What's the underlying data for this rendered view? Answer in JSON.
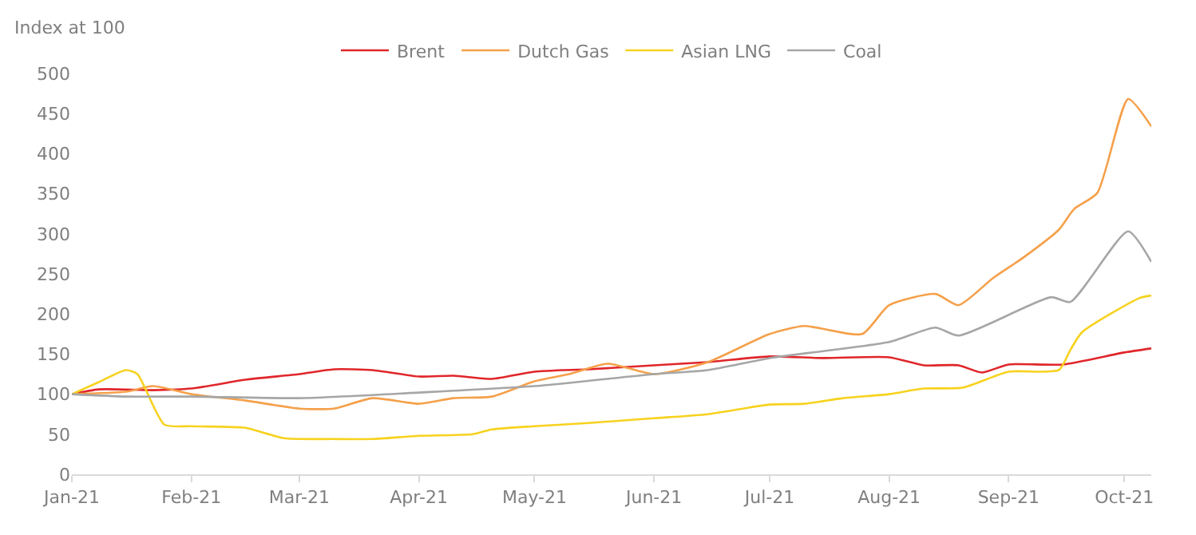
{
  "chart_data": {
    "type": "line",
    "ylabel": "Index at 100",
    "xlim": [
      "2021-01-01",
      "2021-10-08"
    ],
    "xticks": [
      {
        "value": "2021-01-01",
        "label": "Jan-21"
      },
      {
        "value": "2021-02-01",
        "label": "Feb-21"
      },
      {
        "value": "2021-03-01",
        "label": "Mar-21"
      },
      {
        "value": "2021-04-01",
        "label": "Apr-21"
      },
      {
        "value": "2021-05-01",
        "label": "May-21"
      },
      {
        "value": "2021-06-01",
        "label": "Jun-21"
      },
      {
        "value": "2021-07-01",
        "label": "Jul-21"
      },
      {
        "value": "2021-08-01",
        "label": "Aug-21"
      },
      {
        "value": "2021-09-01",
        "label": "Sep-21"
      },
      {
        "value": "2021-10-01",
        "label": "Oct-21"
      }
    ],
    "ylim": [
      0,
      500
    ],
    "yticks": [
      0,
      50,
      100,
      150,
      200,
      250,
      300,
      350,
      400,
      450,
      500
    ],
    "grid": false,
    "legend": "top",
    "marker": "none",
    "line_style": "solid",
    "series": [
      {
        "name": "Brent",
        "color": "#e0262a",
        "x": [
          "2021-01-01",
          "2021-01-08",
          "2021-01-22",
          "2021-02-01",
          "2021-02-15",
          "2021-03-01",
          "2021-03-10",
          "2021-03-20",
          "2021-04-01",
          "2021-04-10",
          "2021-04-20",
          "2021-05-01",
          "2021-05-15",
          "2021-06-01",
          "2021-06-15",
          "2021-07-01",
          "2021-07-15",
          "2021-08-01",
          "2021-08-10",
          "2021-08-19",
          "2021-08-25",
          "2021-09-01",
          "2021-09-15",
          "2021-10-01",
          "2021-10-08"
        ],
        "values": [
          100,
          106,
          105,
          107,
          118,
          125,
          131,
          130,
          122,
          123,
          119,
          128,
          131,
          136,
          140,
          147,
          145,
          146,
          136,
          136,
          127,
          137,
          137,
          152,
          157
        ]
      },
      {
        "name": "Dutch Gas",
        "color": "#f5a04a",
        "x": [
          "2021-01-01",
          "2021-01-15",
          "2021-01-22",
          "2021-02-01",
          "2021-02-15",
          "2021-03-01",
          "2021-03-10",
          "2021-03-20",
          "2021-04-01",
          "2021-04-10",
          "2021-04-20",
          "2021-05-01",
          "2021-05-10",
          "2021-05-20",
          "2021-06-01",
          "2021-06-15",
          "2021-07-01",
          "2021-07-10",
          "2021-07-25",
          "2021-08-01",
          "2021-08-13",
          "2021-08-19",
          "2021-08-28",
          "2021-09-05",
          "2021-09-14",
          "2021-09-18",
          "2021-09-24",
          "2021-10-02",
          "2021-10-08"
        ],
        "values": [
          100,
          103,
          110,
          100,
          92,
          82,
          82,
          95,
          88,
          95,
          97,
          116,
          125,
          138,
          125,
          140,
          175,
          185,
          175,
          211,
          225,
          211,
          245,
          271,
          305,
          331,
          351,
          468,
          434
        ]
      },
      {
        "name": "Asian LNG",
        "color": "#f7d21e",
        "x": [
          "2021-01-01",
          "2021-01-08",
          "2021-01-15",
          "2021-01-18",
          "2021-01-25",
          "2021-02-01",
          "2021-02-15",
          "2021-02-25",
          "2021-03-10",
          "2021-03-20",
          "2021-04-01",
          "2021-04-15",
          "2021-04-20",
          "2021-05-01",
          "2021-05-15",
          "2021-06-01",
          "2021-06-15",
          "2021-07-01",
          "2021-07-10",
          "2021-07-20",
          "2021-08-01",
          "2021-08-10",
          "2021-08-20",
          "2021-09-01",
          "2021-09-14",
          "2021-09-17",
          "2021-09-20",
          "2021-10-05",
          "2021-10-08"
        ],
        "values": [
          100,
          115,
          130,
          125,
          62,
          60,
          58,
          45,
          44,
          44,
          48,
          50,
          56,
          60,
          64,
          70,
          75,
          87,
          88,
          95,
          100,
          107,
          108,
          128,
          130,
          155,
          177,
          220,
          223
        ]
      },
      {
        "name": "Coal",
        "color": "#a6a6a6",
        "x": [
          "2021-01-01",
          "2021-01-15",
          "2021-02-01",
          "2021-03-01",
          "2021-04-01",
          "2021-05-01",
          "2021-06-01",
          "2021-06-15",
          "2021-07-01",
          "2021-08-01",
          "2021-08-13",
          "2021-08-19",
          "2021-09-12",
          "2021-09-17",
          "2021-10-02",
          "2021-10-08"
        ],
        "values": [
          100,
          97,
          97,
          95,
          102,
          110,
          125,
          130,
          145,
          165,
          183,
          173,
          221,
          215,
          303,
          265
        ]
      }
    ]
  }
}
